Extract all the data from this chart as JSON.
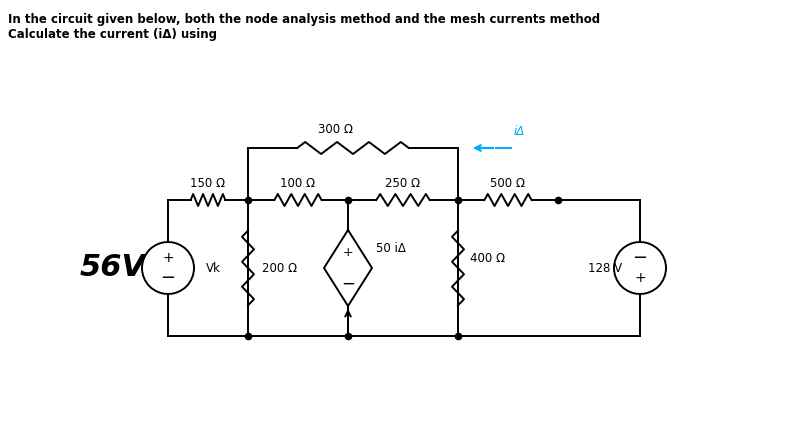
{
  "title_line1": "In the circuit given below, both the node analysis method and the mesh currents method",
  "title_line2": "Calculate the current (iΔ) using",
  "bg_color": "#ffffff",
  "text_color": "#000000",
  "wire_color": "#000000",
  "ia_color": "#00aaff",
  "volt_56": "56V",
  "volt_128": "128 V",
  "label_150": "150 Ω",
  "label_100": "100 Ω",
  "label_250": "250 Ω",
  "label_500": "500 Ω",
  "label_300": "300 Ω",
  "label_200": "200 Ω",
  "label_400": "400 Ω",
  "label_50ia": "50 iΔ",
  "label_vk": "Vk",
  "label_ia": "iΔ",
  "figw": 8.0,
  "figh": 4.28,
  "dpi": 100
}
